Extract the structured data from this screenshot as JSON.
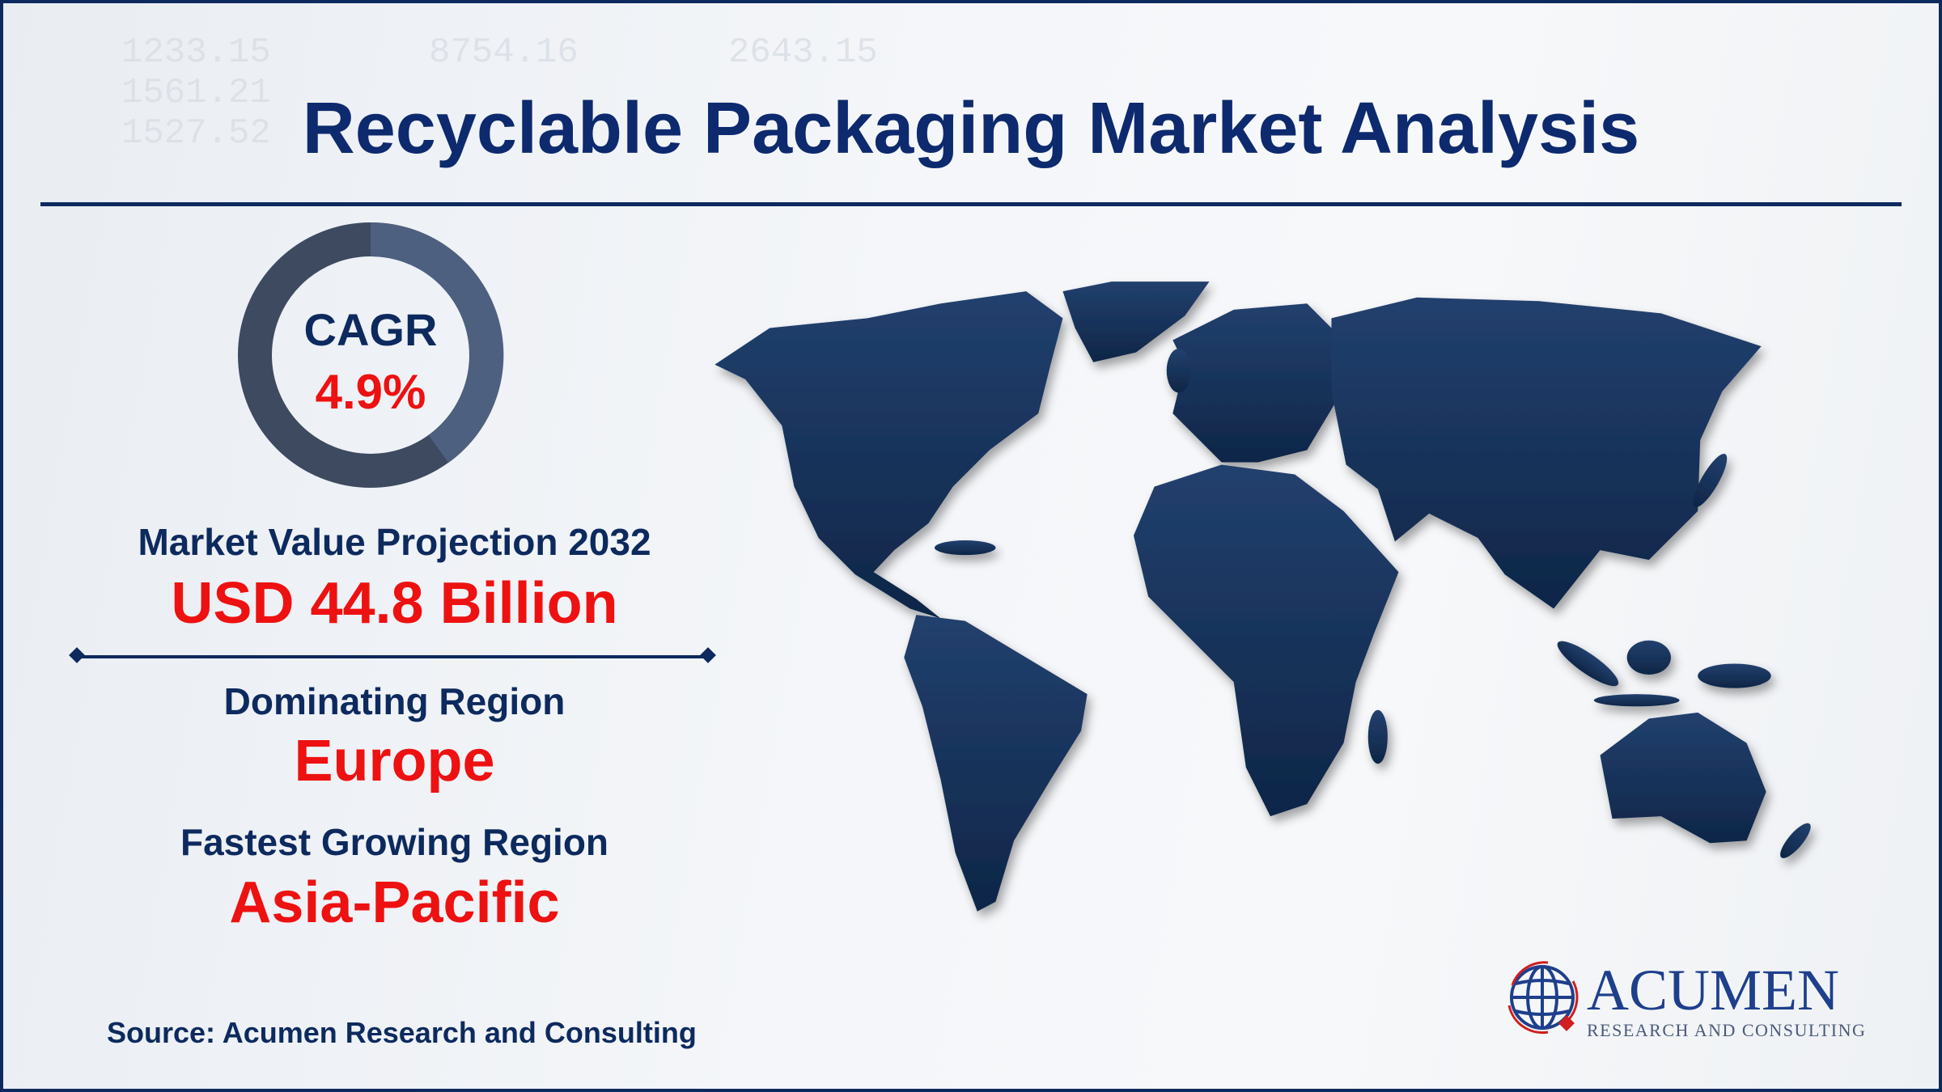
{
  "title": "Recyclable Packaging Market Analysis",
  "cagr": {
    "label": "CAGR",
    "value": "4.9%"
  },
  "market_value": {
    "label": "Market Value Projection 2032",
    "value": "USD 44.8 Billion"
  },
  "dominating_region": {
    "label": "Dominating Region",
    "value": "Europe"
  },
  "fastest_growing_region": {
    "label": "Fastest Growing Region",
    "value": "Asia-Pacific"
  },
  "source": "Source: Acumen Research and Consulting",
  "logo": {
    "name": "ACUMEN",
    "tagline": "RESEARCH AND CONSULTING"
  },
  "colors": {
    "navy": "#0d2a5e",
    "red": "#ee1111",
    "ring": "#3d4f6b"
  }
}
